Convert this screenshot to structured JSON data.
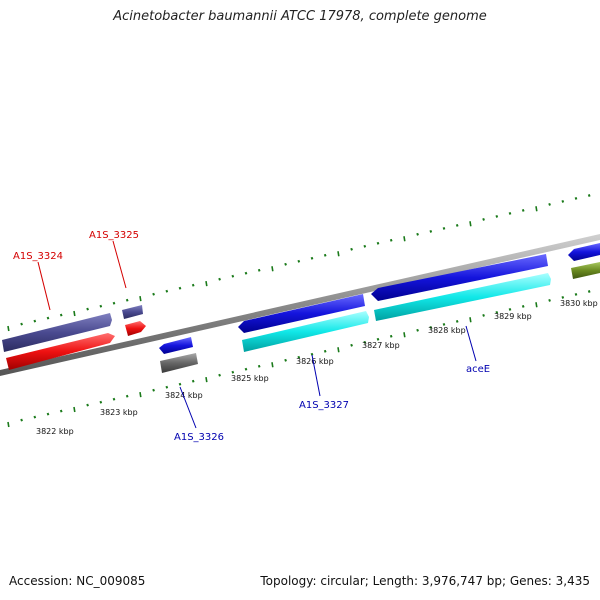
{
  "title": "Acinetobacter baumannii ATCC 17978, complete genome",
  "footer": {
    "accession": "Accession: NC_009085",
    "stats": "Topology: circular; Length: 3,976,747 bp; Genes: 3,435"
  },
  "colors": {
    "backbone": "#8a8a8a",
    "tick": "#1a7a1a",
    "gene_purple": "#4a4a90",
    "gene_red": "#ee1111",
    "gene_blue": "#1414dd",
    "gene_cyan": "#11e8e8",
    "gene_gray": "#666666",
    "gene_olive": "#6a8a20",
    "label_red": "#d40000",
    "label_blue": "#0000b0"
  },
  "scale_labels": [
    "3822 kbp",
    "3823 kbp",
    "3824 kbp",
    "3825 kbp",
    "3826 kbp",
    "3827 kbp",
    "3828 kbp",
    "3829 kbp",
    "3830 kbp"
  ],
  "gene_labels": [
    "A1S_3324",
    "A1S_3325",
    "A1S_3326",
    "A1S_3327",
    "aceE"
  ]
}
